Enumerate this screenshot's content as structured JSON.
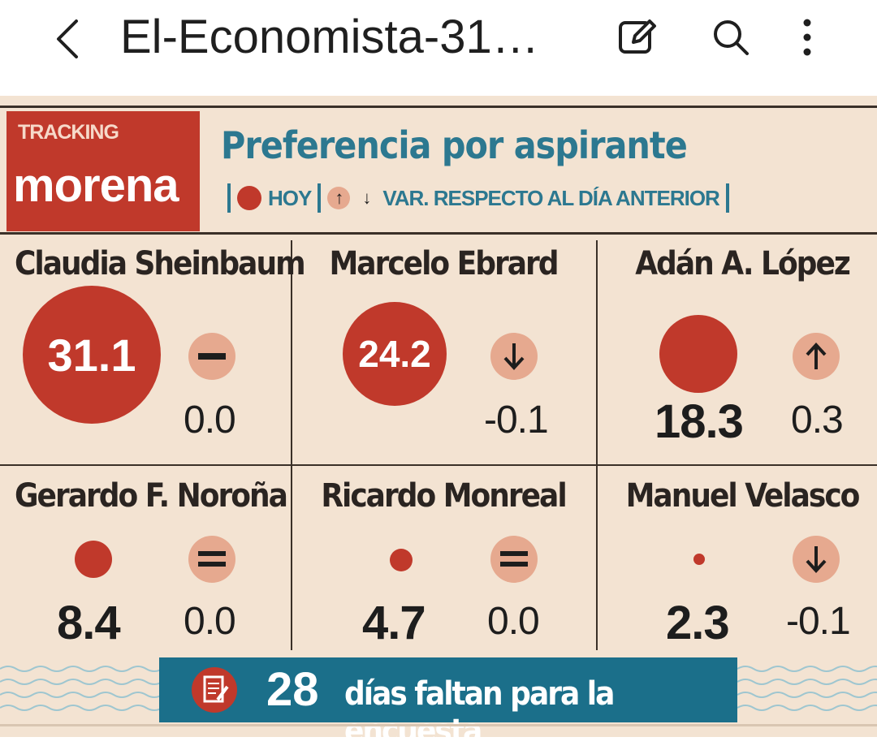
{
  "appbar": {
    "title": "El-Economista-31…",
    "back_icon": "chevron-left-icon",
    "edit_icon": "edit-icon",
    "search_icon": "search-icon",
    "more_icon": "more-vertical-icon"
  },
  "graphic": {
    "brand_small": "TRACKING",
    "brand_big": "morena",
    "heading": "Preferencia por aspirante",
    "legend": {
      "today": "HOY",
      "variation": "VAR. RESPECTO AL DÍA ANTERIOR"
    },
    "candidates": [
      {
        "name": "Claudia Sheinbaum",
        "value": "31.1",
        "change": "0.0",
        "trend": "equal"
      },
      {
        "name": "Marcelo Ebrard",
        "value": "24.2",
        "change": "-0.1",
        "trend": "down"
      },
      {
        "name": "Adán A. López",
        "value": "18.3",
        "change": "0.3",
        "trend": "up"
      },
      {
        "name": "Gerardo F. Noroña",
        "value": "8.4",
        "change": "0.0",
        "trend": "equal"
      },
      {
        "name": "Ricardo Monreal",
        "value": "4.7",
        "change": "0.0",
        "trend": "equal"
      },
      {
        "name": "Manuel Velasco",
        "value": "2.3",
        "change": "-0.1",
        "trend": "down"
      }
    ],
    "footer": {
      "days": "28",
      "text": "días faltan para la encuesta"
    },
    "colors": {
      "accent_red": "#c0392b",
      "teal": "#2c7890",
      "background": "#f3e3d2",
      "change_bubble": "#e6a98f"
    }
  }
}
